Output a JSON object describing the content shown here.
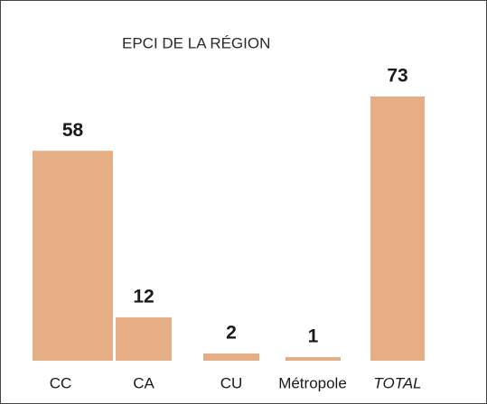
{
  "chart_data": {
    "type": "bar",
    "title": "EPCI DE LA RÉGION",
    "categories": [
      "CC",
      "CA",
      "CU",
      "Métropole",
      "TOTAL"
    ],
    "values": [
      58,
      12,
      2,
      1,
      73
    ],
    "color": "#e6ae85",
    "grid": false
  }
}
